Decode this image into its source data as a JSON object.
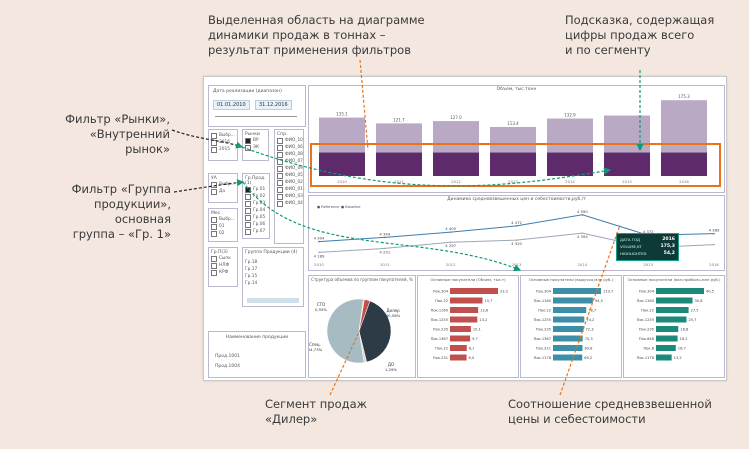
{
  "annotations": {
    "top": [
      "Выделенная область на диаграмме",
      "динамики продаж в тоннах –",
      "результат применения фильтров"
    ],
    "top_right": [
      "Подсказка, содержащая",
      "цифры продаж всего",
      "и по сегменту"
    ],
    "markets": [
      "Фильтр «Рынки»,",
      "«Внутренний рынок»"
    ],
    "group": [
      "Фильтр «Группа",
      "продукции», основная",
      "группа – «Гр. 1»"
    ],
    "segment": [
      "Сегмент продаж",
      "«Дилер»"
    ],
    "ratio": [
      "Соотношение средневзвешенной",
      "цены и себестоимости"
    ]
  },
  "colors": {
    "annotation_arrow": "#0e9a78",
    "highlight": "#e8731a",
    "bar_light": "#b9a9c4",
    "bar_dark": "#5e2a6b",
    "teal": "#1c8a7a",
    "red": "#c0504d",
    "blue_bar": "#3d8fa8"
  },
  "filters": {
    "date_title": "Дата реализации (диапазон)",
    "date_from": "01.01.2010",
    "date_to": "31.12.2016",
    "year_items": [
      "Выбр...",
      "2016",
      "2015"
    ],
    "markets_title": "Рынки",
    "markets_items": [
      "ВР",
      "ЭК"
    ],
    "sp_title": "Спр.",
    "sp_items": [
      "ФИО_10",
      "ФИО_06",
      "ФИО_08",
      "ФИО_07",
      "ФИО_09",
      "ФИО_05",
      "ФИО_02",
      "ФИО_01",
      "ФИО_03",
      "ФИО_04"
    ],
    "ya_title": "УА",
    "ya_items": [
      "Выбр...",
      "Да",
      "Нет"
    ],
    "gr_title": "Гр.Прод.(1)",
    "gr_items": [
      "Гр.01",
      "Гр.02",
      "Гр.03",
      "Гр.04",
      "Гр.05",
      "Гр.06",
      "Гр.07"
    ],
    "mes_title": "Мес.",
    "mes_items": [
      "Выбр...",
      "01",
      "02"
    ],
    "gr3_title": "Гр.П(3)",
    "gr3_items": [
      "Сыпк",
      "НЛФ",
      "КРФ"
    ],
    "gr4_title": "Группа Продукции (4)",
    "gr4_items": [
      "Гр.18",
      "Гр.17",
      "Гр.15",
      "Гр.14"
    ],
    "product_title": "Наименование продукции",
    "product_items": [
      "Прод.1001",
      "Прод.1004"
    ]
  },
  "chart_data": [
    {
      "type": "bar",
      "title": "Объем, тыс.тонн",
      "categories": [
        "2010",
        "2011",
        "2012",
        "2013",
        "2014",
        "2015",
        "2016"
      ],
      "series": [
        {
          "values": [
            135.1,
            121.7,
            127.0,
            113.4,
            132.9,
            139.8,
            175.3
          ]
        },
        {
          "values": [
            54.2,
            54.2,
            54.2,
            54.2,
            54.2,
            54.2,
            54.2
          ]
        }
      ],
      "labels": [
        "135.1",
        "121.7",
        "127.0",
        "113.4",
        "132.9",
        "",
        "175.3"
      ],
      "ylim": [
        0,
        185
      ]
    },
    {
      "type": "line",
      "title": "Динамика средневзвешенных цен и себестоимости,руб./т",
      "categories": [
        "2010",
        "2011",
        "2012",
        "2013",
        "2014",
        "2015",
        "2016"
      ],
      "series": [
        {
          "name": "Reference",
          "values": [
            4304,
            4349,
            4405,
            4472,
            4590,
            4372,
            4389
          ],
          "labels": [
            "4 304",
            "4 349",
            "4 405",
            "4 472",
            "4 590",
            "4 372",
            "4 389"
          ]
        },
        {
          "name": "Baseline",
          "values": [
            4189,
            4231,
            4297,
            4320,
            4394,
            4239,
            4271
          ],
          "labels": [
            "4 189",
            "4 231",
            "4 297",
            "4 320",
            "4 394",
            "4 239",
            ""
          ]
        }
      ]
    },
    {
      "type": "pie",
      "title": "Структура объемов по группам покупателей, %",
      "slices": [
        {
          "label": "Дилер",
          "value": 40.58,
          "text": "Дилер 40,58%"
        },
        {
          "label": "ДО",
          "value": 1.29,
          "text": "ДО 1,29%"
        },
        {
          "label": "Спец.",
          "value": 54.73,
          "text": "Спец. 54,73%"
        },
        {
          "label": "СТО",
          "value": 0.55,
          "text": "СТО 0,55%"
        },
        {
          "label": "Прочие",
          "value": 2.85,
          "text": ""
        }
      ]
    },
    {
      "type": "bar",
      "title": "Основные покупатели (Объем, тыс.т)",
      "categories": [
        "Пок.304",
        "Пок.22",
        "Пок.1160",
        "Пок.1255",
        "Пок.235",
        "Пок.1367",
        "Пок.22",
        "Пок.231"
      ],
      "values": [
        23.2,
        15.7,
        13.6,
        13.2,
        10.1,
        9.7,
        8.1,
        8.0
      ],
      "labels": [
        "23,2",
        "15,7",
        "13,6",
        "13,2",
        "10,1",
        "9,7",
        "8,1",
        "8,0"
      ]
    },
    {
      "type": "bar",
      "title": "Основные покупатели (выручка,млн руб.)",
      "categories": [
        "Пок.304",
        "Пок.1160",
        "Пок.22",
        "Пок.1255",
        "Пок.235",
        "Пок.1367",
        "Пок.221",
        "Пок.1178"
      ],
      "values": [
        113.7,
        94.5,
        78.7,
        74.2,
        72.3,
        70.3,
        69.8,
        69.2
      ],
      "labels": [
        "113,7",
        "94,5",
        "78,7",
        "74,2",
        "72,3",
        "70,3",
        "69,8",
        "69,2"
      ]
    },
    {
      "type": "bar",
      "title": "Основные покупатели (вал.прибыль,млн руб.)",
      "categories": [
        "Пок.304",
        "Пок.1160",
        "Пок.22",
        "Пок.1255",
        "Пок.235",
        "Пок.646",
        "Пок.6",
        "Пок.1178"
      ],
      "values": [
        40.5,
        30.8,
        27.5,
        25.7,
        18.8,
        18.2,
        16.7,
        13.2
      ],
      "labels": [
        "40,5",
        "30,8",
        "27,5",
        "25,7",
        "18,8",
        "18,2",
        "16,7",
        "13,2"
      ]
    }
  ],
  "tooltip": {
    "rows": [
      {
        "label": "ДАТА ГОД",
        "value": "2016"
      },
      {
        "label": "VOLUME,KT",
        "value": "175,3"
      },
      {
        "label": "HIGHLIGHTED",
        "value": "54,2"
      }
    ]
  }
}
